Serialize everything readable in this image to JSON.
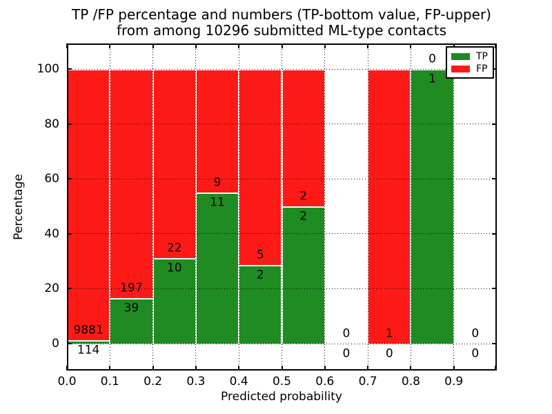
{
  "chart_data": {
    "type": "bar",
    "stacked": true,
    "title_lines": [
      "TP /FP percentage and numbers (TP-bottom value, FP-upper)",
      "from among 10296 submitted ML-type contacts"
    ],
    "title": "TP /FP percentage and numbers (TP-bottom value, FP-upper) from among 10296 submitted ML-type contacts",
    "xlabel": "Predicted probability",
    "ylabel": "Percentage",
    "total_contacts": 10296,
    "xticks": [
      "0.0",
      "0.1",
      "0.2",
      "0.3",
      "0.4",
      "0.5",
      "0.6",
      "0.7",
      "0.8",
      "0.9"
    ],
    "yticks": [
      0,
      20,
      40,
      60,
      80,
      100
    ],
    "xlim": [
      0.0,
      1.0
    ],
    "ylim": [
      -10,
      110
    ],
    "grid": "dotted",
    "bins": [
      {
        "x_range": [
          0.0,
          0.1
        ],
        "tp": 114,
        "fp": 9881,
        "tp_pct": 1.14
      },
      {
        "x_range": [
          0.1,
          0.2
        ],
        "tp": 39,
        "fp": 197,
        "tp_pct": 16.53
      },
      {
        "x_range": [
          0.2,
          0.3
        ],
        "tp": 10,
        "fp": 22,
        "tp_pct": 31.25
      },
      {
        "x_range": [
          0.3,
          0.4
        ],
        "tp": 11,
        "fp": 9,
        "tp_pct": 55.0
      },
      {
        "x_range": [
          0.4,
          0.5
        ],
        "tp": 2,
        "fp": 5,
        "tp_pct": 28.57
      },
      {
        "x_range": [
          0.5,
          0.6
        ],
        "tp": 2,
        "fp": 2,
        "tp_pct": 50.0
      },
      {
        "x_range": [
          0.6,
          0.7
        ],
        "tp": 0,
        "fp": 0,
        "tp_pct": null
      },
      {
        "x_range": [
          0.7,
          0.8
        ],
        "tp": 0,
        "fp": 1,
        "tp_pct": 0.0
      },
      {
        "x_range": [
          0.8,
          0.9
        ],
        "tp": 1,
        "fp": 0,
        "tp_pct": 100.0
      },
      {
        "x_range": [
          0.9,
          1.0
        ],
        "tp": 0,
        "fp": 0,
        "tp_pct": null
      }
    ],
    "legend": {
      "position": "upper right",
      "entries": [
        {
          "label": "TP",
          "color": "#1f8b22"
        },
        {
          "label": "FP",
          "color": "#fc1a17"
        }
      ]
    },
    "colors": {
      "tp": "#1f8b22",
      "fp": "#fc1a17",
      "text": "#000000",
      "grid": "#000000",
      "background": "#ffffff"
    }
  }
}
